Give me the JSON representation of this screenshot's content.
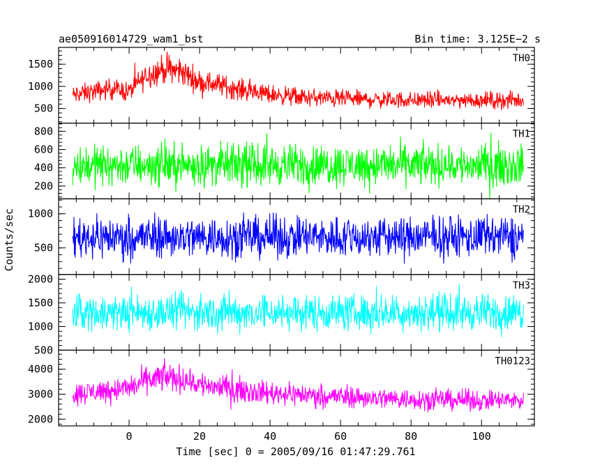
{
  "header": {
    "title_left": "ae050916014729_wam1_bst",
    "title_right": "Bin time: 3.125E−2 s"
  },
  "axes": {
    "xlabel": "Time [sec] 0 = 2005/09/16 01:47:29.761",
    "ylabel": "Counts/sec"
  },
  "chart_data": {
    "type": "line",
    "title": "ae050916014729_wam1_bst",
    "subtitle": "Bin time: 3.125E−2 s",
    "xlabel": "Time [sec] 0 = 2005/09/16 01:47:29.761",
    "ylabel": "Counts/sec",
    "xlim": [
      -20,
      115
    ],
    "x_range": [
      -16,
      112
    ],
    "bin_time": 0.03125,
    "x_ticks": [
      0,
      20,
      40,
      60,
      80,
      100
    ],
    "panels": [
      {
        "name": "TH0",
        "color": "#ff0000",
        "ylim": [
          170,
          1880
        ],
        "y_ticks": [
          500,
          1000,
          1500
        ],
        "series": {
          "x": [
            -16,
            -10,
            -5,
            0,
            5,
            10,
            15,
            20,
            25,
            30,
            40,
            50,
            60,
            70,
            80,
            90,
            100,
            112
          ],
          "mean": [
            800,
            880,
            950,
            880,
            1250,
            1400,
            1330,
            1100,
            1050,
            950,
            820,
            750,
            720,
            700,
            690,
            690,
            690,
            680
          ],
          "spread": [
            320,
            330,
            340,
            330,
            430,
            480,
            460,
            390,
            380,
            350,
            310,
            300,
            290,
            280,
            280,
            280,
            280,
            280
          ]
        }
      },
      {
        "name": "TH1",
        "color": "#00ff00",
        "ylim": [
          60,
          890
        ],
        "y_ticks": [
          200,
          400,
          600,
          800
        ],
        "series": {
          "x": [
            -16,
            112
          ],
          "mean": [
            430,
            430
          ],
          "spread": [
            330,
            330
          ]
        }
      },
      {
        "name": "TH2",
        "color": "#0000ff",
        "ylim": [
          110,
          1220
        ],
        "y_ticks": [
          500,
          1000
        ],
        "series": {
          "x": [
            -16,
            112
          ],
          "mean": [
            660,
            660
          ],
          "spread": [
            450,
            450
          ]
        }
      },
      {
        "name": "TH3",
        "color": "#00ffff",
        "ylim": [
          500,
          2100
        ],
        "y_ticks": [
          500,
          1000,
          1500,
          2000
        ],
        "series": {
          "x": [
            -16,
            112
          ],
          "mean": [
            1300,
            1300
          ],
          "spread": [
            560,
            560
          ]
        }
      },
      {
        "name": "TH0123",
        "color": "#ff00ff",
        "ylim": [
          1730,
          4760
        ],
        "y_ticks": [
          2000,
          3000,
          4000
        ],
        "series": {
          "x": [
            -16,
            -10,
            0,
            5,
            10,
            15,
            20,
            30,
            40,
            60,
            80,
            100,
            112
          ],
          "mean": [
            3000,
            3100,
            3250,
            3550,
            3700,
            3600,
            3400,
            3200,
            3050,
            2900,
            2800,
            2750,
            2750
          ],
          "spread": [
            650,
            680,
            700,
            800,
            850,
            820,
            780,
            720,
            680,
            640,
            620,
            600,
            600
          ]
        }
      }
    ]
  }
}
